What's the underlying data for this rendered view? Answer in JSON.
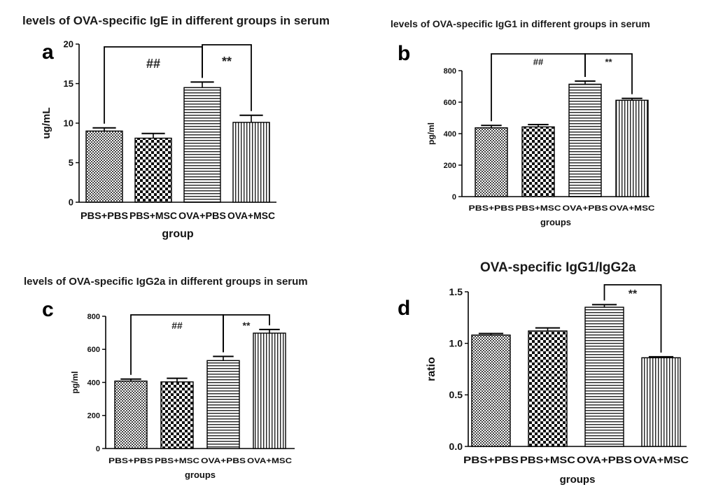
{
  "chart_data": [
    {
      "type": "bar",
      "panel": "a",
      "title": "levels of OVA-specific IgE in different groups in serum",
      "xlabel": "group",
      "ylabel": "ug/mL",
      "categories": [
        "PBS+PBS",
        "PBS+MSC",
        "OVA+PBS",
        "OVA+MSC"
      ],
      "values": [
        9.0,
        8.1,
        14.5,
        10.1
      ],
      "errors": [
        0.4,
        0.6,
        0.7,
        0.9
      ],
      "patterns": [
        "dots",
        "checker",
        "hlines",
        "vlines"
      ],
      "ylim": [
        0,
        20
      ],
      "yticks": [
        0,
        5,
        10,
        15,
        20
      ],
      "brackets": [
        {
          "from": 0,
          "to": 2,
          "label": "##"
        },
        {
          "from": 2,
          "to": 3,
          "label": "**"
        }
      ]
    },
    {
      "type": "bar",
      "panel": "b",
      "title": "levels of OVA-specific IgG1 in different groups in serum",
      "xlabel": "groups",
      "ylabel": "pg/ml",
      "categories": [
        "PBS+PBS",
        "PBS+MSC",
        "OVA+PBS",
        "OVA+MSC"
      ],
      "values": [
        437,
        443,
        714,
        612
      ],
      "errors": [
        15,
        15,
        20,
        12
      ],
      "patterns": [
        "dots",
        "checker",
        "hlines",
        "vlines"
      ],
      "ylim": [
        0,
        800
      ],
      "yticks": [
        0,
        200,
        400,
        600,
        800
      ],
      "brackets": [
        {
          "from": 0,
          "to": 2,
          "label": "##"
        },
        {
          "from": 2,
          "to": 3,
          "label": "**"
        }
      ]
    },
    {
      "type": "bar",
      "panel": "c",
      "title": "levels of OVA-specific IgG2a in different groups in serum",
      "xlabel": "groups",
      "ylabel": "pg/ml",
      "categories": [
        "PBS+PBS",
        "PBS+MSC",
        "OVA+PBS",
        "OVA+MSC"
      ],
      "values": [
        408,
        403,
        532,
        698
      ],
      "errors": [
        12,
        22,
        25,
        22
      ],
      "patterns": [
        "dots",
        "checker",
        "hlines",
        "vlines"
      ],
      "ylim": [
        0,
        800
      ],
      "yticks": [
        0,
        200,
        400,
        600,
        800
      ],
      "brackets": [
        {
          "from": 0,
          "to": 2,
          "label": "##"
        },
        {
          "from": 2,
          "to": 3,
          "label": "**"
        }
      ]
    },
    {
      "type": "bar",
      "panel": "d",
      "title": "OVA-specific IgG1/IgG2a",
      "xlabel": "groups",
      "ylabel": "ratio",
      "categories": [
        "PBS+PBS",
        "PBS+MSC",
        "OVA+PBS",
        "OVA+MSC"
      ],
      "values": [
        1.08,
        1.12,
        1.35,
        0.86
      ],
      "errors": [
        0.015,
        0.03,
        0.025,
        0.01
      ],
      "patterns": [
        "dots",
        "checker",
        "hlines",
        "vlines"
      ],
      "ylim": [
        0,
        1.5
      ],
      "yticks": [
        "0.0",
        "0.5",
        "1.0",
        "1.5"
      ],
      "brackets": [
        {
          "from": 2,
          "to": 3,
          "label": "**"
        }
      ]
    }
  ]
}
